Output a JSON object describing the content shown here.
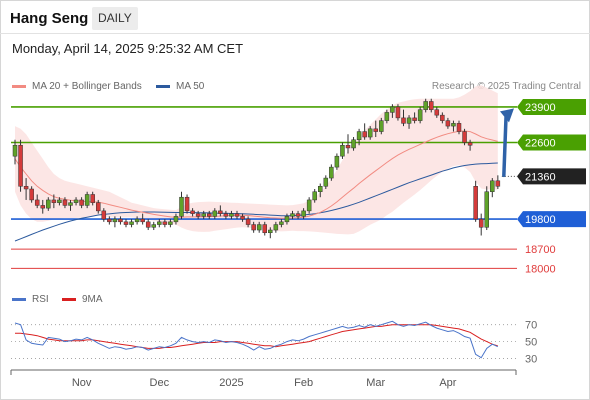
{
  "header": {
    "title": "Hang Seng",
    "badge": "DAILY",
    "datetime": "Monday, April 14, 2025 9:25:32 AM CET"
  },
  "legend": {
    "ma20": {
      "label": "MA 20 + Bollinger Bands",
      "color": "#f28b82"
    },
    "ma50": {
      "label": "MA 50",
      "color": "#2c5a9e"
    },
    "credit": "Research © 2025 Trading Central"
  },
  "rsi_legend": {
    "rsi": {
      "label": "RSI",
      "color": "#4a74c9"
    },
    "ma9": {
      "label": "9MA",
      "color": "#d92020"
    }
  },
  "chart_data": [
    {
      "type": "candlestick",
      "title": "Hang Seng",
      "ylim": [
        17500,
        24300
      ],
      "x_ticks": [
        "Nov",
        "Dec",
        "2025",
        "Feb",
        "Mar",
        "Apr"
      ],
      "candles": [
        [
          22100,
          22700,
          21800,
          22500
        ],
        [
          22500,
          22700,
          20800,
          21000
        ],
        [
          21000,
          21300,
          20500,
          20900
        ],
        [
          20900,
          21000,
          20400,
          20500
        ],
        [
          20500,
          20700,
          20200,
          20300
        ],
        [
          20300,
          20500,
          20000,
          20200
        ],
        [
          20200,
          20600,
          20100,
          20500
        ],
        [
          20500,
          20700,
          20200,
          20400
        ],
        [
          20400,
          20600,
          20300,
          20500
        ],
        [
          20500,
          20600,
          20200,
          20300
        ],
        [
          20300,
          20500,
          20100,
          20400
        ],
        [
          20400,
          20600,
          20300,
          20500
        ],
        [
          20500,
          20600,
          20200,
          20300
        ],
        [
          20300,
          20800,
          20200,
          20700
        ],
        [
          20700,
          20800,
          20300,
          20400
        ],
        [
          20400,
          20500,
          20000,
          20100
        ],
        [
          20100,
          20200,
          19700,
          19800
        ],
        [
          19800,
          19900,
          19600,
          19700
        ],
        [
          19700,
          19900,
          19500,
          19800
        ],
        [
          19800,
          19900,
          19600,
          19700
        ],
        [
          19700,
          19800,
          19500,
          19600
        ],
        [
          19600,
          19800,
          19500,
          19700
        ],
        [
          19700,
          19900,
          19600,
          19800
        ],
        [
          19800,
          20000,
          19600,
          19700
        ],
        [
          19700,
          19800,
          19400,
          19500
        ],
        [
          19500,
          19700,
          19400,
          19600
        ],
        [
          19600,
          19800,
          19500,
          19700
        ],
        [
          19700,
          19800,
          19500,
          19600
        ],
        [
          19600,
          19800,
          19500,
          19700
        ],
        [
          19700,
          20000,
          19600,
          19900
        ],
        [
          19900,
          20800,
          19800,
          20600
        ],
        [
          20600,
          20700,
          20000,
          20100
        ],
        [
          20100,
          20200,
          19900,
          20000
        ],
        [
          20000,
          20100,
          19800,
          19900
        ],
        [
          19900,
          20100,
          19800,
          20000
        ],
        [
          20000,
          20100,
          19800,
          19900
        ],
        [
          19900,
          20200,
          19800,
          20100
        ],
        [
          20100,
          20300,
          19900,
          20000
        ],
        [
          20000,
          20100,
          19800,
          19900
        ],
        [
          19900,
          20100,
          19800,
          20000
        ],
        [
          20000,
          20100,
          19800,
          19900
        ],
        [
          19900,
          20000,
          19700,
          19800
        ],
        [
          19800,
          19900,
          19500,
          19600
        ],
        [
          19600,
          19700,
          19300,
          19400
        ],
        [
          19400,
          19700,
          19300,
          19600
        ],
        [
          19600,
          19700,
          19200,
          19300
        ],
        [
          19300,
          19500,
          19100,
          19400
        ],
        [
          19400,
          19700,
          19300,
          19600
        ],
        [
          19600,
          19800,
          19500,
          19700
        ],
        [
          19700,
          20000,
          19600,
          19900
        ],
        [
          19900,
          20100,
          19800,
          20000
        ],
        [
          20000,
          20100,
          19800,
          19900
        ],
        [
          19900,
          20200,
          19800,
          20100
        ],
        [
          20100,
          20600,
          20000,
          20500
        ],
        [
          20500,
          20900,
          20400,
          20800
        ],
        [
          20800,
          21100,
          20600,
          21000
        ],
        [
          21000,
          21400,
          20900,
          21300
        ],
        [
          21300,
          21800,
          21200,
          21700
        ],
        [
          21700,
          22200,
          21600,
          22100
        ],
        [
          22100,
          22600,
          22000,
          22500
        ],
        [
          22500,
          22900,
          22200,
          22400
        ],
        [
          22400,
          22800,
          22300,
          22700
        ],
        [
          22700,
          23100,
          22500,
          23000
        ],
        [
          23000,
          23300,
          22700,
          22800
        ],
        [
          22800,
          23200,
          22700,
          23100
        ],
        [
          23100,
          23400,
          22800,
          23000
        ],
        [
          23000,
          23500,
          22900,
          23400
        ],
        [
          23400,
          23800,
          23300,
          23700
        ],
        [
          23700,
          24000,
          23500,
          23900
        ],
        [
          23900,
          24000,
          23400,
          23500
        ],
        [
          23500,
          23800,
          23200,
          23300
        ],
        [
          23300,
          23600,
          23100,
          23500
        ],
        [
          23500,
          23700,
          23300,
          23400
        ],
        [
          23400,
          23900,
          23300,
          23800
        ],
        [
          23800,
          24200,
          23700,
          24100
        ],
        [
          24100,
          24200,
          23700,
          23800
        ],
        [
          23800,
          23900,
          23500,
          23600
        ],
        [
          23600,
          23700,
          23300,
          23400
        ],
        [
          23400,
          23500,
          23100,
          23200
        ],
        [
          23200,
          23400,
          23000,
          23300
        ],
        [
          23300,
          23400,
          22900,
          23000
        ],
        [
          23000,
          23100,
          22500,
          22600
        ],
        [
          22600,
          22700,
          22300,
          22500
        ],
        [
          21000,
          21200,
          19700,
          19800
        ],
        [
          19800,
          20000,
          19200,
          19500
        ],
        [
          19500,
          21000,
          19400,
          20800
        ],
        [
          20800,
          21300,
          20600,
          21200
        ],
        [
          21200,
          21400,
          20900,
          21000
        ]
      ],
      "ma20": [
        22000,
        21700,
        21450,
        21200,
        21000,
        20850,
        20720,
        20620,
        20560,
        20520,
        20490,
        20470,
        20450,
        20440,
        20430,
        20420,
        20380,
        20330,
        20280,
        20230,
        20180,
        20130,
        20090,
        20050,
        20010,
        19970,
        19940,
        19910,
        19880,
        19860,
        19870,
        19880,
        19880,
        19880,
        19880,
        19890,
        19900,
        19910,
        19920,
        19930,
        19940,
        19940,
        19930,
        19910,
        19890,
        19870,
        19850,
        19840,
        19830,
        19830,
        19840,
        19850,
        19870,
        19910,
        19970,
        20050,
        20150,
        20280,
        20430,
        20600,
        20770,
        20930,
        21100,
        21260,
        21420,
        21570,
        21720,
        21870,
        22010,
        22140,
        22250,
        22350,
        22440,
        22530,
        22620,
        22710,
        22790,
        22860,
        22920,
        22970,
        23010,
        23020,
        23000,
        22910,
        22810,
        22740,
        22690,
        22640
      ],
      "bb_upper": [
        23200,
        23100,
        22900,
        22600,
        22300,
        22000,
        21700,
        21450,
        21300,
        21200,
        21150,
        21100,
        21050,
        21000,
        20950,
        20900,
        20850,
        20800,
        20700,
        20600,
        20500,
        20400,
        20350,
        20300,
        20250,
        20200,
        20180,
        20160,
        20140,
        20120,
        20250,
        20350,
        20400,
        20420,
        20430,
        20440,
        20430,
        20420,
        20410,
        20400,
        20390,
        20380,
        20370,
        20360,
        20350,
        20340,
        20330,
        20320,
        20310,
        20300,
        20310,
        20340,
        20380,
        20470,
        20600,
        20780,
        21000,
        21280,
        21600,
        21950,
        22300,
        22600,
        22850,
        23050,
        23250,
        23450,
        23650,
        23800,
        23950,
        24050,
        24100,
        24150,
        24180,
        24200,
        24200,
        24200,
        24200,
        24200,
        24200,
        24200,
        24250,
        24350,
        24480,
        24650,
        24700,
        24600,
        24500,
        24400
      ],
      "bb_lower": [
        20800,
        20300,
        20000,
        19800,
        19700,
        19700,
        19740,
        19790,
        19820,
        19840,
        19830,
        19840,
        19850,
        19880,
        19910,
        19940,
        19910,
        19860,
        19860,
        19860,
        19860,
        19860,
        19830,
        19800,
        19770,
        19740,
        19700,
        19660,
        19620,
        19600,
        19490,
        19410,
        19360,
        19340,
        19330,
        19340,
        19370,
        19400,
        19430,
        19460,
        19490,
        19500,
        19490,
        19460,
        19430,
        19400,
        19370,
        19360,
        19350,
        19360,
        19370,
        19360,
        19360,
        19350,
        19340,
        19320,
        19300,
        19280,
        19260,
        19250,
        19240,
        19260,
        19350,
        19470,
        19590,
        19690,
        19790,
        19940,
        20070,
        20230,
        20400,
        20550,
        20700,
        20860,
        21040,
        21220,
        21380,
        21520,
        21640,
        21740,
        21770,
        21690,
        21520,
        21170,
        20920,
        20880,
        20880,
        20880
      ],
      "ma50": [
        19000,
        19080,
        19160,
        19240,
        19320,
        19400,
        19470,
        19540,
        19610,
        19670,
        19730,
        19780,
        19830,
        19870,
        19910,
        19950,
        19970,
        19990,
        20010,
        20030,
        20040,
        20050,
        20060,
        20060,
        20060,
        20060,
        20055,
        20050,
        20045,
        20040,
        20040,
        20040,
        20040,
        20035,
        20030,
        20025,
        20020,
        20015,
        20010,
        20005,
        20000,
        19995,
        19985,
        19975,
        19965,
        19955,
        19945,
        19935,
        19925,
        19920,
        19925,
        19935,
        19950,
        19970,
        19995,
        20030,
        20070,
        20115,
        20165,
        20220,
        20280,
        20345,
        20415,
        20490,
        20570,
        20650,
        20730,
        20810,
        20890,
        20970,
        21050,
        21130,
        21200,
        21270,
        21340,
        21410,
        21480,
        21550,
        21610,
        21670,
        21720,
        21760,
        21790,
        21810,
        21820,
        21830,
        21840,
        21850
      ],
      "levels": [
        {
          "value": 23900,
          "label": "23900",
          "color": "#4aa002",
          "style": "pivot",
          "line": true
        },
        {
          "value": 22600,
          "label": "22600",
          "color": "#4aa002",
          "style": "pivot",
          "line": true
        },
        {
          "value": 21360,
          "label": "21360",
          "color": "#222222",
          "style": "last",
          "line": false
        },
        {
          "value": 19800,
          "label": "19800",
          "color": "#1f5fd6",
          "style": "pivot",
          "line": true
        },
        {
          "value": 18700,
          "label": "18700",
          "color": "#e03c3c",
          "style": "text",
          "line": true
        },
        {
          "value": 18000,
          "label": "18000",
          "color": "#e03c3c",
          "style": "text",
          "line": true
        }
      ],
      "arrow": {
        "from": 21400,
        "to": 23700
      }
    },
    {
      "type": "line",
      "title": "RSI",
      "ylim": [
        20,
        85
      ],
      "y_ticks": [
        70,
        50,
        30
      ],
      "rsi": [
        72,
        70,
        52,
        48,
        47,
        46,
        55,
        54,
        53,
        50,
        51,
        53,
        52,
        55,
        52,
        48,
        45,
        42,
        44,
        43,
        41,
        42,
        44,
        43,
        40,
        42,
        44,
        43,
        45,
        48,
        55,
        52,
        50,
        49,
        50,
        49,
        52,
        51,
        49,
        50,
        49,
        47,
        44,
        40,
        44,
        41,
        42,
        45,
        47,
        50,
        52,
        51,
        53,
        56,
        58,
        60,
        62,
        64,
        66,
        68,
        66,
        67,
        69,
        67,
        70,
        68,
        70,
        72,
        74,
        70,
        68,
        70,
        69,
        71,
        73,
        69,
        66,
        64,
        62,
        63,
        60,
        56,
        54,
        35,
        31,
        42,
        47,
        44
      ],
      "ma9": [
        60,
        60,
        59,
        58,
        57,
        55,
        53,
        52,
        51,
        51,
        51,
        51,
        51,
        52,
        52,
        51,
        50,
        49,
        48,
        47,
        46,
        45,
        44,
        43,
        42,
        42,
        42,
        43,
        43,
        44,
        45,
        46,
        47,
        48,
        49,
        49,
        49,
        50,
        50,
        50,
        50,
        49,
        48,
        47,
        46,
        45,
        45,
        44,
        45,
        46,
        47,
        48,
        49,
        50,
        52,
        54,
        56,
        58,
        60,
        62,
        63,
        64,
        65,
        66,
        67,
        68,
        68,
        69,
        70,
        70,
        70,
        70,
        70,
        70,
        70,
        70,
        69,
        68,
        67,
        66,
        65,
        63,
        61,
        57,
        53,
        50,
        47,
        45
      ]
    }
  ]
}
